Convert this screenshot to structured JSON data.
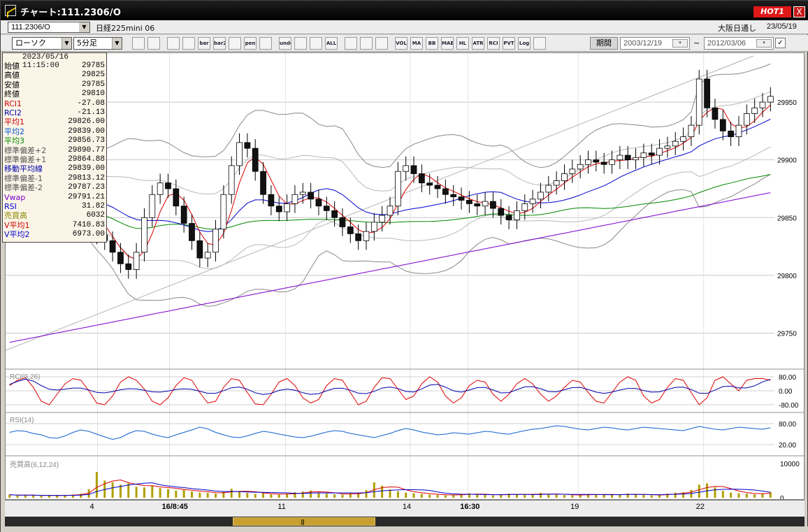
{
  "window": {
    "title": "チャート:111.2306/O",
    "hot_badge": "HOT1",
    "close": "X"
  },
  "header": {
    "symbol_value": "111.2306/O",
    "symbol_name": "日経225mini 06",
    "exchange": "大阪日通し",
    "date": "23/05/19"
  },
  "toolbar": {
    "chart_type": "ローソク",
    "interval": "5分足",
    "buttons": [
      "search",
      "crosshair",
      "zoom-in",
      "zoom-out",
      "bar",
      "bar2",
      "measure",
      "pen",
      "pointer",
      "undo",
      "candle",
      "candle2",
      "ALL",
      "tools",
      "brush",
      "color",
      "VOL",
      "MA",
      "BB",
      "MAE",
      "HL",
      "ATR",
      "RCI",
      "PVT",
      "Log",
      "export"
    ],
    "period_label": "期間",
    "date_from": "2003/12/19",
    "date_to": "2012/03/06",
    "tilde": "~"
  },
  "info_panel": {
    "datetime": "2023/05/16  11:15:00",
    "rows": [
      {
        "label": "始値",
        "value": "29785",
        "color": "#000000"
      },
      {
        "label": "高値",
        "value": "29825",
        "color": "#000000"
      },
      {
        "label": "安値",
        "value": "29785",
        "color": "#000000"
      },
      {
        "label": "終値",
        "value": "29810",
        "color": "#000000"
      },
      {
        "label": "RCI1",
        "value": "-27.08",
        "color": "#cc0000"
      },
      {
        "label": "RCI2",
        "value": "-21.13",
        "color": "#0000aa"
      },
      {
        "label": "平均1",
        "value": "29826.00",
        "color": "#cc0000"
      },
      {
        "label": "平均2",
        "value": "29839.00",
        "color": "#0055cc"
      },
      {
        "label": "平均3",
        "value": "29856.73",
        "color": "#008800"
      },
      {
        "label": "標準偏差+2",
        "value": "29890.77",
        "color": "#555555"
      },
      {
        "label": "標準偏差+1",
        "value": "29864.88",
        "color": "#555555"
      },
      {
        "label": "移動平均線",
        "value": "29839.00",
        "color": "#0000aa"
      },
      {
        "label": "標準偏差-1",
        "value": "29813.12",
        "color": "#555555"
      },
      {
        "label": "標準偏差-2",
        "value": "29787.23",
        "color": "#555555"
      },
      {
        "label": "Vwap",
        "value": "29791.21",
        "color": "#7a00cc"
      },
      {
        "label": "RSI",
        "value": "31.82",
        "color": "#0000cc"
      },
      {
        "label": "売買高",
        "value": "6032",
        "color": "#888800"
      },
      {
        "label": "V平均1",
        "value": "7410.83",
        "color": "#cc0000"
      },
      {
        "label": "V平均2",
        "value": "6973.00",
        "color": "#0000cc"
      }
    ]
  },
  "panes": {
    "rci_label": "RCI(9,26)",
    "rsi_label": "RSI(14)",
    "volume_label": "売買高(6,12,24)"
  },
  "chart_data": {
    "type": "candlestick",
    "y_ticks": [
      "29950",
      "29900",
      "29850",
      "29800",
      "29750"
    ],
    "ylim": [
      29720,
      29990
    ],
    "rci_ticks": [
      "80.00",
      "0.00",
      "-80.00"
    ],
    "rsi_ticks": [
      "80.00",
      "20.00"
    ],
    "volume_ticks": [
      "10000",
      "0"
    ],
    "x_ticks": [
      "4",
      "16/8:45",
      "11",
      "14",
      "16:30",
      "19",
      "22"
    ],
    "x_tick_bold": [
      false,
      true,
      false,
      false,
      true,
      false,
      false
    ],
    "x_tick_pos": [
      0.115,
      0.205,
      0.35,
      0.506,
      0.578,
      0.716,
      0.873
    ],
    "closes": [
      29865,
      29860,
      29858,
      29862,
      29870,
      29878,
      29885,
      29880,
      29872,
      29860,
      29850,
      29835,
      29830,
      29820,
      29810,
      29805,
      29820,
      29850,
      29870,
      29880,
      29875,
      29860,
      29845,
      29830,
      29815,
      29820,
      29840,
      29870,
      29895,
      29915,
      29910,
      29890,
      29870,
      29860,
      29855,
      29862,
      29870,
      29872,
      29866,
      29860,
      29856,
      29850,
      29842,
      29836,
      29830,
      29838,
      29846,
      29852,
      29860,
      29890,
      29895,
      29888,
      29880,
      29878,
      29875,
      29870,
      29868,
      29865,
      29862,
      29860,
      29864,
      29858,
      29852,
      29848,
      29856,
      29862,
      29866,
      29872,
      29878,
      29882,
      29888,
      29892,
      29896,
      29900,
      29898,
      29896,
      29900,
      29904,
      29900,
      29902,
      29906,
      29904,
      29910,
      29912,
      29916,
      29920,
      29930,
      29970,
      29945,
      29935,
      29925,
      29920,
      29930,
      29940,
      29945,
      29950,
      29955
    ],
    "rci": [
      30,
      60,
      75,
      20,
      -60,
      -80,
      -20,
      40,
      70,
      60,
      0,
      -70,
      -80,
      -30,
      50,
      80,
      60,
      10,
      -60,
      -80,
      -40,
      30,
      75,
      60,
      -10,
      -70,
      -60,
      20,
      70,
      60,
      -10,
      -75,
      -80,
      -20,
      50,
      70,
      30,
      -40,
      -70,
      -50,
      30,
      70,
      60,
      -10,
      -80,
      -60,
      20,
      75,
      70,
      10,
      -50,
      -30,
      40,
      80,
      50,
      -30,
      -70,
      -40,
      30,
      60,
      50,
      -20,
      -60,
      -20,
      40,
      70,
      40,
      -20,
      -60,
      -30,
      20,
      60,
      50,
      -10,
      -60,
      -70,
      -10,
      50,
      80,
      60,
      -30,
      -70,
      -50,
      20,
      70,
      60,
      -10,
      -80,
      -40,
      60,
      80,
      40,
      0,
      60,
      70,
      70,
      60
    ],
    "rsi": [
      55,
      60,
      58,
      52,
      48,
      40,
      38,
      45,
      55,
      62,
      58,
      50,
      42,
      35,
      40,
      52,
      60,
      58,
      50,
      44,
      40,
      48,
      55,
      62,
      70,
      65,
      55,
      48,
      42,
      40,
      45,
      52,
      58,
      55,
      50,
      46,
      42,
      40,
      44,
      50,
      56,
      60,
      58,
      52,
      48,
      44,
      40,
      46,
      52,
      60,
      66,
      62,
      56,
      52,
      48,
      50,
      54,
      52,
      50,
      54,
      58,
      56,
      52,
      50,
      55,
      60,
      64,
      66,
      70,
      74,
      72,
      68,
      64,
      62,
      66,
      70,
      68,
      64,
      62,
      66,
      70,
      68,
      66,
      64,
      62,
      60,
      66,
      72,
      68,
      64,
      62,
      66,
      70,
      68,
      66,
      64,
      68
    ],
    "volume": [
      900,
      600,
      800,
      700,
      500,
      600,
      700,
      800,
      900,
      1200,
      2500,
      7500,
      5000,
      4500,
      3800,
      4200,
      3200,
      3000,
      3600,
      2800,
      2500,
      2100,
      2300,
      1800,
      1500,
      1400,
      1200,
      1700,
      2600,
      1900,
      1400,
      1100,
      1300,
      1000,
      900,
      1200,
      1600,
      1800,
      2100,
      1500,
      1200,
      1000,
      900,
      1300,
      1500,
      2200,
      4500,
      3500,
      2400,
      1900,
      1500,
      1300,
      1100,
      900,
      800,
      700,
      900,
      1100,
      1300,
      900,
      800,
      700,
      1000,
      1200,
      900,
      800,
      1100,
      1400,
      1000,
      900,
      800,
      700,
      900,
      1100,
      1000,
      800,
      900,
      1000,
      1200,
      900,
      800,
      700,
      900,
      1200,
      1500,
      1600,
      2300,
      3800,
      4200,
      3000,
      2000,
      1500,
      1300,
      1200,
      1000,
      1300,
      1600
    ]
  },
  "colors": {
    "ma1": "#dd0000",
    "ma2": "#0000cc",
    "ma3": "#008800",
    "vwap": "#7a00cc",
    "band": "#888888",
    "rci1": "#dd0000",
    "rci2": "#0000aa",
    "rsi": "#1060d0",
    "volume": "#b0a000",
    "candle_up": "#ffffff",
    "candle_down": "#111111"
  }
}
